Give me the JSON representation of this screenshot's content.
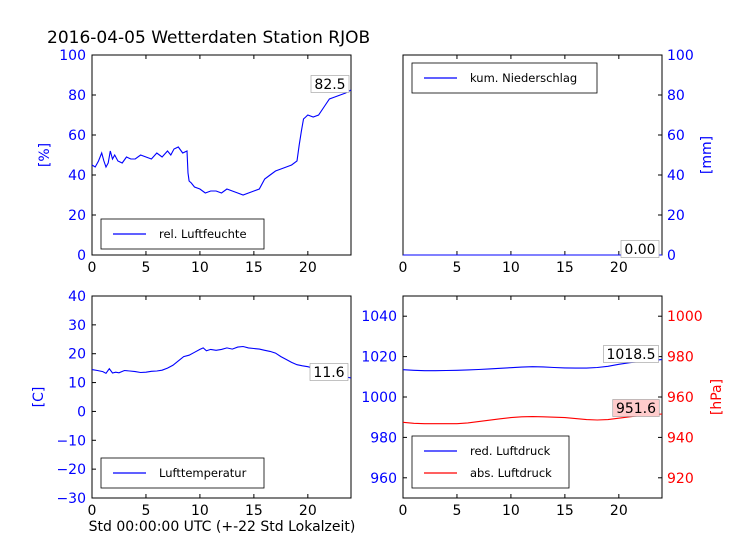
{
  "title": "2016-04-05 Wetterdaten Station RJOB",
  "xlabel": "Std 00:00:00 UTC (+-22 Std Lokalzeit)",
  "colors": {
    "blue": "#0000ff",
    "red": "#ff0000",
    "annot_bg": "#ffcccc"
  },
  "chart_data": [
    {
      "type": "line",
      "ylabel": "[%]",
      "xlim": [
        0,
        24
      ],
      "ylim": [
        0,
        100
      ],
      "xticks": [
        0,
        5,
        10,
        15,
        20
      ],
      "yticks": [
        0,
        20,
        40,
        60,
        80,
        100
      ],
      "legend": "lower-left",
      "annotation": "82.5",
      "series": [
        {
          "name": "rel. Luftfeuchte",
          "color": "#0000ff",
          "x": [
            0,
            0.3,
            0.6,
            0.9,
            1.1,
            1.3,
            1.5,
            1.7,
            1.9,
            2.1,
            2.4,
            2.8,
            3.2,
            3.6,
            4,
            4.5,
            5,
            5.5,
            6,
            6.5,
            7,
            7.3,
            7.6,
            8,
            8.4,
            8.8,
            8.9,
            9.0,
            9.2,
            9.5,
            10,
            10.5,
            11,
            11.5,
            12,
            12.5,
            13,
            13.5,
            14,
            14.5,
            15,
            15.5,
            16,
            16.5,
            17,
            17.5,
            18,
            18.5,
            19,
            19.2,
            19.4,
            19.6,
            19.8,
            20,
            20.5,
            21,
            21.5,
            22,
            22.5,
            23,
            23.5,
            24
          ],
          "y": [
            45,
            44,
            47,
            51,
            47,
            44,
            46,
            52,
            48,
            50,
            47,
            46,
            49,
            48,
            48,
            50,
            49,
            48,
            51,
            49,
            52,
            50,
            53,
            54,
            51,
            52,
            41,
            37,
            36,
            34,
            33,
            31,
            32,
            32,
            31,
            33,
            32,
            31,
            30,
            31,
            32,
            33,
            38,
            40,
            42,
            43,
            44,
            45,
            47,
            55,
            62,
            68,
            69,
            70,
            69,
            70,
            74,
            78,
            79,
            80,
            81,
            82.5
          ]
        }
      ]
    },
    {
      "type": "line",
      "ylabel": "[mm]",
      "xlim": [
        0,
        24
      ],
      "ylim": [
        0,
        100
      ],
      "xticks": [
        0,
        5,
        10,
        15,
        20
      ],
      "yticks": [
        0,
        20,
        40,
        60,
        80,
        100
      ],
      "legend": "upper-left",
      "annotation": "0.00",
      "series": [
        {
          "name": "kum. Niederschlag",
          "color": "#0000ff",
          "x": [
            0,
            24
          ],
          "y": [
            0,
            0
          ]
        }
      ]
    },
    {
      "type": "line",
      "ylabel": "[C]",
      "xlim": [
        0,
        24
      ],
      "ylim": [
        -30,
        40
      ],
      "xticks": [
        0,
        5,
        10,
        15,
        20
      ],
      "yticks": [
        -30,
        -20,
        -10,
        0,
        10,
        20,
        30,
        40
      ],
      "legend": "lower-left",
      "annotation": "11.6",
      "series": [
        {
          "name": "Lufttemperatur",
          "color": "#0000ff",
          "x": [
            0,
            0.5,
            1,
            1.3,
            1.6,
            1.9,
            2.2,
            2.5,
            3,
            3.5,
            4,
            4.5,
            5,
            5.5,
            6,
            6.5,
            7,
            7.5,
            8,
            8.5,
            9,
            9.5,
            10,
            10.3,
            10.6,
            11,
            11.5,
            12,
            12.5,
            13,
            13.5,
            14,
            14.5,
            15,
            15.5,
            16,
            16.5,
            17,
            17.5,
            18,
            18.5,
            19,
            19.5,
            20,
            20.5,
            21,
            21.5,
            22,
            22.5,
            23,
            23.5,
            24
          ],
          "y": [
            14.5,
            14.2,
            13.8,
            13.2,
            14.8,
            13.3,
            13.6,
            13.4,
            14.2,
            14,
            13.8,
            13.5,
            13.6,
            13.9,
            14,
            14.3,
            15,
            16,
            17.5,
            19,
            19.5,
            20.5,
            21.5,
            22,
            21,
            21.5,
            21.2,
            21.5,
            22,
            21.6,
            22.3,
            22.5,
            22,
            21.8,
            21.6,
            21.2,
            20.8,
            20.2,
            19,
            18,
            17,
            16.2,
            15.8,
            15.5,
            15,
            14.5,
            13.8,
            13.5,
            12.8,
            12.3,
            12,
            11.6
          ]
        }
      ]
    },
    {
      "type": "line",
      "ylabel_right": "[hPa]",
      "xlim": [
        0,
        24
      ],
      "ylim_left": [
        950,
        1050
      ],
      "ylim_right": [
        910,
        1010
      ],
      "xticks": [
        0,
        5,
        10,
        15,
        20
      ],
      "yticks_left": [
        960,
        980,
        1000,
        1020,
        1040
      ],
      "yticks_right": [
        920,
        940,
        960,
        980,
        1000
      ],
      "legend": "lower-left",
      "series": [
        {
          "name": "red. Luftdruck",
          "color": "#0000ff",
          "axis": "left",
          "annotation": "1018.5",
          "x": [
            0,
            1,
            2,
            3,
            4,
            5,
            6,
            7,
            8,
            9,
            10,
            11,
            12,
            13,
            14,
            15,
            16,
            17,
            18,
            19,
            20,
            21,
            22,
            23,
            24
          ],
          "y": [
            1013.5,
            1013.2,
            1013.0,
            1013.0,
            1013.1,
            1013.2,
            1013.4,
            1013.6,
            1013.9,
            1014.2,
            1014.5,
            1014.8,
            1015.0,
            1014.9,
            1014.6,
            1014.4,
            1014.3,
            1014.3,
            1014.6,
            1015.2,
            1016.2,
            1017.0,
            1017.6,
            1018.1,
            1018.5
          ]
        },
        {
          "name": "abs. Luftdruck",
          "color": "#ff0000",
          "axis": "right",
          "annotation": "951.6",
          "x": [
            0,
            1,
            2,
            3,
            4,
            5,
            6,
            7,
            8,
            9,
            10,
            11,
            12,
            13,
            14,
            15,
            16,
            17,
            18,
            19,
            20,
            21,
            22,
            23,
            24
          ],
          "y": [
            947.5,
            947.0,
            946.8,
            946.8,
            946.8,
            946.8,
            947.2,
            947.8,
            948.5,
            949.2,
            949.8,
            950.2,
            950.3,
            950.2,
            950.0,
            949.8,
            949.3,
            948.8,
            948.6,
            948.8,
            949.5,
            950.2,
            950.8,
            951.2,
            951.6
          ]
        }
      ]
    }
  ]
}
